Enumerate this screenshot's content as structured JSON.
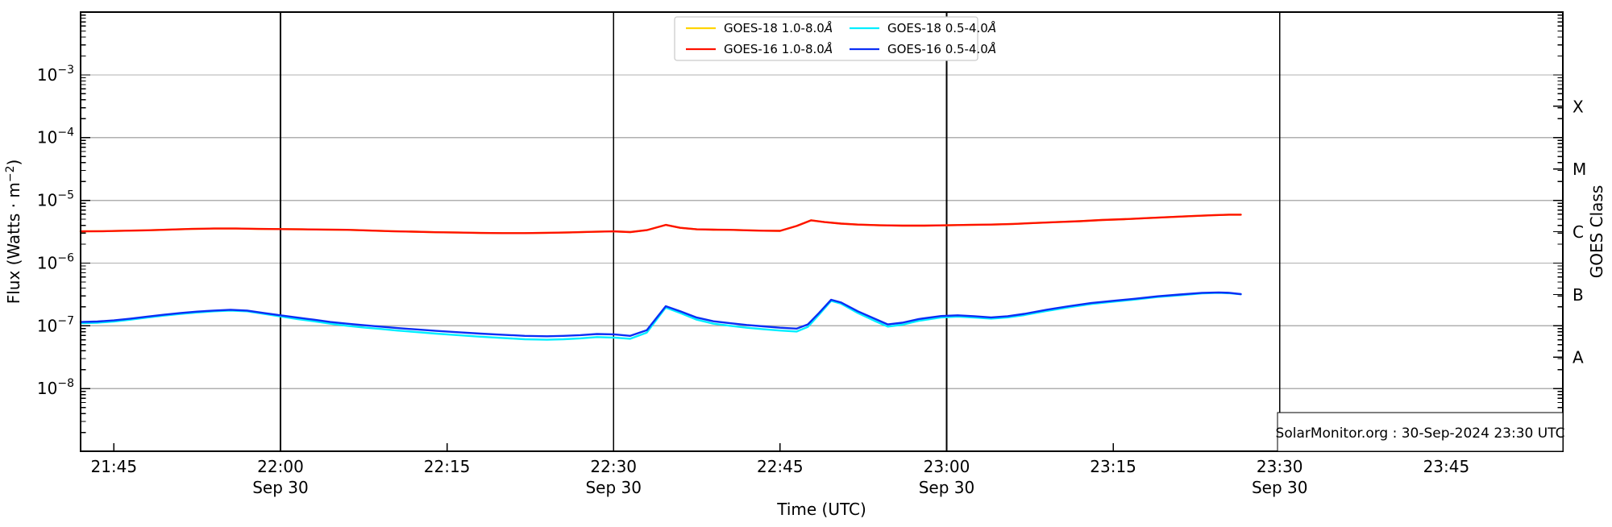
{
  "chart_data": {
    "type": "line",
    "title": "",
    "xlabel": "Time (UTC)",
    "ylabel": {
      "pre": "Flux (Watts · m",
      "sup": "−2",
      "post": ")"
    },
    "ylabel_right": "GOES Class",
    "watermark": "SolarMonitor.org : 30-Sep-2024 23:30 UTC",
    "x_axis": {
      "unit": "minutes after 21:42 UTC",
      "domain": [
        0,
        133.5
      ],
      "ticks": [
        {
          "t": 3,
          "label": "21:45",
          "date": "",
          "line": false
        },
        {
          "t": 18,
          "label": "22:00",
          "date": "Sep 30",
          "line": true
        },
        {
          "t": 33,
          "label": "22:15",
          "date": "",
          "line": false
        },
        {
          "t": 48,
          "label": "22:30",
          "date": "Sep 30",
          "line": true
        },
        {
          "t": 63,
          "label": "22:45",
          "date": "",
          "line": false
        },
        {
          "t": 78,
          "label": "23:00",
          "date": "Sep 30",
          "line": true
        },
        {
          "t": 93,
          "label": "23:15",
          "date": "",
          "line": false
        },
        {
          "t": 108,
          "label": "23:30",
          "date": "Sep 30",
          "line": true
        },
        {
          "t": 123,
          "label": "23:45",
          "date": "",
          "line": false
        }
      ]
    },
    "y_axis": {
      "scale": "log",
      "domain_exponents": [
        -2,
        -9
      ],
      "tick_exponents": [
        -3,
        -4,
        -5,
        -6,
        -7,
        -8
      ]
    },
    "right_axis": {
      "labels": [
        {
          "text": "X",
          "exponent": -3.5
        },
        {
          "text": "M",
          "exponent": -4.5
        },
        {
          "text": "C",
          "exponent": -5.5
        },
        {
          "text": "B",
          "exponent": -6.5
        },
        {
          "text": "A",
          "exponent": -7.5
        }
      ]
    },
    "colors": {
      "h_grid": "#b0b0b0",
      "v_grid": "#000000",
      "frame": "#000000",
      "legend_border": "#c9c9c9"
    },
    "legend": {
      "entries": [
        "GOES-18 1.0-8.0Å",
        "GOES-16 1.0-8.0Å",
        "GOES-18 0.5-4.0Å",
        "GOES-16 0.5-4.0Å"
      ]
    },
    "series": [
      {
        "name": "GOES-18 1.0-8.0Å",
        "color": "#ffd400",
        "unit_scale": 1e-06,
        "points": [
          [
            0,
            3.2
          ],
          [
            2,
            3.22
          ],
          [
            4,
            3.28
          ],
          [
            6,
            3.33
          ],
          [
            8,
            3.42
          ],
          [
            10,
            3.5
          ],
          [
            12,
            3.55
          ],
          [
            14,
            3.55
          ],
          [
            16,
            3.5
          ],
          [
            18,
            3.48
          ],
          [
            20,
            3.45
          ],
          [
            22,
            3.42
          ],
          [
            24,
            3.38
          ],
          [
            26,
            3.3
          ],
          [
            28,
            3.22
          ],
          [
            30,
            3.16
          ],
          [
            32,
            3.1
          ],
          [
            34,
            3.06
          ],
          [
            36,
            3.02
          ],
          [
            38,
            3.0
          ],
          [
            40,
            3.0
          ],
          [
            42,
            3.03
          ],
          [
            44,
            3.08
          ],
          [
            46,
            3.14
          ],
          [
            48,
            3.2
          ],
          [
            49.5,
            3.12
          ],
          [
            51,
            3.35
          ],
          [
            52.7,
            4.05
          ],
          [
            54,
            3.65
          ],
          [
            55.5,
            3.45
          ],
          [
            57,
            3.4
          ],
          [
            58.5,
            3.38
          ],
          [
            60,
            3.33
          ],
          [
            61.5,
            3.28
          ],
          [
            63,
            3.26
          ],
          [
            64.5,
            3.9
          ],
          [
            65.8,
            4.8
          ],
          [
            67,
            4.5
          ],
          [
            68.5,
            4.25
          ],
          [
            70,
            4.1
          ],
          [
            72,
            4.0
          ],
          [
            74,
            3.95
          ],
          [
            76,
            3.95
          ],
          [
            78,
            4.0
          ],
          [
            80,
            4.05
          ],
          [
            82,
            4.1
          ],
          [
            84,
            4.2
          ],
          [
            86,
            4.35
          ],
          [
            88,
            4.5
          ],
          [
            90,
            4.65
          ],
          [
            92,
            4.85
          ],
          [
            94,
            5.0
          ],
          [
            96,
            5.2
          ],
          [
            98,
            5.4
          ],
          [
            100,
            5.6
          ],
          [
            102,
            5.78
          ],
          [
            103.5,
            5.9
          ],
          [
            104.5,
            5.9
          ]
        ]
      },
      {
        "name": "GOES-16 1.0-8.0Å",
        "color": "#fe1100",
        "unit_scale": 1e-06,
        "points": [
          [
            0,
            3.2
          ],
          [
            2,
            3.22
          ],
          [
            4,
            3.28
          ],
          [
            6,
            3.33
          ],
          [
            8,
            3.42
          ],
          [
            10,
            3.5
          ],
          [
            12,
            3.55
          ],
          [
            14,
            3.55
          ],
          [
            16,
            3.5
          ],
          [
            18,
            3.48
          ],
          [
            20,
            3.45
          ],
          [
            22,
            3.42
          ],
          [
            24,
            3.38
          ],
          [
            26,
            3.3
          ],
          [
            28,
            3.22
          ],
          [
            30,
            3.16
          ],
          [
            32,
            3.1
          ],
          [
            34,
            3.06
          ],
          [
            36,
            3.02
          ],
          [
            38,
            3.0
          ],
          [
            40,
            3.0
          ],
          [
            42,
            3.03
          ],
          [
            44,
            3.08
          ],
          [
            46,
            3.14
          ],
          [
            48,
            3.2
          ],
          [
            49.5,
            3.12
          ],
          [
            51,
            3.35
          ],
          [
            52.7,
            4.05
          ],
          [
            54,
            3.65
          ],
          [
            55.5,
            3.45
          ],
          [
            57,
            3.4
          ],
          [
            58.5,
            3.38
          ],
          [
            60,
            3.33
          ],
          [
            61.5,
            3.28
          ],
          [
            63,
            3.26
          ],
          [
            64.5,
            3.9
          ],
          [
            65.8,
            4.8
          ],
          [
            67,
            4.5
          ],
          [
            68.5,
            4.25
          ],
          [
            70,
            4.1
          ],
          [
            72,
            4.0
          ],
          [
            74,
            3.95
          ],
          [
            76,
            3.95
          ],
          [
            78,
            4.0
          ],
          [
            80,
            4.05
          ],
          [
            82,
            4.1
          ],
          [
            84,
            4.2
          ],
          [
            86,
            4.35
          ],
          [
            88,
            4.5
          ],
          [
            90,
            4.65
          ],
          [
            92,
            4.85
          ],
          [
            94,
            5.0
          ],
          [
            96,
            5.2
          ],
          [
            98,
            5.4
          ],
          [
            100,
            5.6
          ],
          [
            102,
            5.78
          ],
          [
            103.5,
            5.9
          ],
          [
            104.5,
            5.9
          ]
        ]
      },
      {
        "name": "GOES-18 0.5-4.0Å",
        "color": "#00eeff",
        "unit_scale": 1e-07,
        "points": [
          [
            0,
            1.1
          ],
          [
            1.5,
            1.12
          ],
          [
            3,
            1.17
          ],
          [
            4.5,
            1.25
          ],
          [
            6,
            1.35
          ],
          [
            7.5,
            1.45
          ],
          [
            9,
            1.55
          ],
          [
            10.5,
            1.63
          ],
          [
            12,
            1.7
          ],
          [
            13.5,
            1.75
          ],
          [
            15,
            1.7
          ],
          [
            16.5,
            1.55
          ],
          [
            18,
            1.41
          ],
          [
            19.5,
            1.28
          ],
          [
            21,
            1.18
          ],
          [
            22.5,
            1.08
          ],
          [
            24,
            1.0
          ],
          [
            25.5,
            0.94
          ],
          [
            27,
            0.89
          ],
          [
            28.5,
            0.84
          ],
          [
            30,
            0.8
          ],
          [
            32,
            0.75
          ],
          [
            34,
            0.71
          ],
          [
            36,
            0.67
          ],
          [
            38,
            0.64
          ],
          [
            40,
            0.61
          ],
          [
            42,
            0.6
          ],
          [
            43.5,
            0.61
          ],
          [
            45,
            0.63
          ],
          [
            46.5,
            0.66
          ],
          [
            48,
            0.65
          ],
          [
            49.5,
            0.62
          ],
          [
            51,
            0.78
          ],
          [
            52.7,
            1.95
          ],
          [
            54,
            1.6
          ],
          [
            55.5,
            1.25
          ],
          [
            57,
            1.08
          ],
          [
            58.5,
            1.0
          ],
          [
            60,
            0.93
          ],
          [
            61.5,
            0.88
          ],
          [
            63,
            0.84
          ],
          [
            64.5,
            0.81
          ],
          [
            65.5,
            0.96
          ],
          [
            66.5,
            1.5
          ],
          [
            67.6,
            2.5
          ],
          [
            68.5,
            2.25
          ],
          [
            70,
            1.6
          ],
          [
            71.5,
            1.2
          ],
          [
            72.7,
            0.97
          ],
          [
            74,
            1.04
          ],
          [
            75.5,
            1.2
          ],
          [
            77.5,
            1.36
          ],
          [
            79,
            1.4
          ],
          [
            80.5,
            1.35
          ],
          [
            82,
            1.3
          ],
          [
            83.5,
            1.36
          ],
          [
            85,
            1.48
          ],
          [
            87,
            1.72
          ],
          [
            89,
            1.97
          ],
          [
            91,
            2.22
          ],
          [
            93,
            2.42
          ],
          [
            95,
            2.62
          ],
          [
            97,
            2.87
          ],
          [
            99,
            3.07
          ],
          [
            101,
            3.28
          ],
          [
            102.5,
            3.35
          ],
          [
            103.5,
            3.3
          ],
          [
            104.5,
            3.18
          ]
        ]
      },
      {
        "name": "GOES-16 0.5-4.0Å",
        "color": "#0a2ef5",
        "unit_scale": 1e-07,
        "points": [
          [
            0,
            1.15
          ],
          [
            1.5,
            1.17
          ],
          [
            3,
            1.22
          ],
          [
            4.5,
            1.3
          ],
          [
            6,
            1.4
          ],
          [
            7.5,
            1.5
          ],
          [
            9,
            1.6
          ],
          [
            10.5,
            1.68
          ],
          [
            12,
            1.75
          ],
          [
            13.5,
            1.8
          ],
          [
            15,
            1.75
          ],
          [
            16.5,
            1.6
          ],
          [
            18,
            1.47
          ],
          [
            19.5,
            1.35
          ],
          [
            21,
            1.25
          ],
          [
            22.5,
            1.15
          ],
          [
            24,
            1.08
          ],
          [
            25.5,
            1.02
          ],
          [
            27,
            0.97
          ],
          [
            28.5,
            0.92
          ],
          [
            30,
            0.88
          ],
          [
            32,
            0.83
          ],
          [
            34,
            0.79
          ],
          [
            36,
            0.75
          ],
          [
            38,
            0.72
          ],
          [
            40,
            0.69
          ],
          [
            42,
            0.68
          ],
          [
            43.5,
            0.69
          ],
          [
            45,
            0.71
          ],
          [
            46.5,
            0.74
          ],
          [
            48,
            0.73
          ],
          [
            49.5,
            0.69
          ],
          [
            51,
            0.85
          ],
          [
            52.7,
            2.05
          ],
          [
            54,
            1.7
          ],
          [
            55.5,
            1.35
          ],
          [
            57,
            1.18
          ],
          [
            58.5,
            1.1
          ],
          [
            60,
            1.03
          ],
          [
            61.5,
            0.98
          ],
          [
            63,
            0.93
          ],
          [
            64.5,
            0.9
          ],
          [
            65.5,
            1.05
          ],
          [
            66.5,
            1.6
          ],
          [
            67.6,
            2.6
          ],
          [
            68.5,
            2.35
          ],
          [
            70,
            1.7
          ],
          [
            71.5,
            1.3
          ],
          [
            72.7,
            1.05
          ],
          [
            74,
            1.12
          ],
          [
            75.5,
            1.28
          ],
          [
            77.5,
            1.43
          ],
          [
            79,
            1.47
          ],
          [
            80.5,
            1.42
          ],
          [
            82,
            1.36
          ],
          [
            83.5,
            1.42
          ],
          [
            85,
            1.55
          ],
          [
            87,
            1.8
          ],
          [
            89,
            2.05
          ],
          [
            91,
            2.3
          ],
          [
            93,
            2.5
          ],
          [
            95,
            2.7
          ],
          [
            97,
            2.95
          ],
          [
            99,
            3.15
          ],
          [
            101,
            3.35
          ],
          [
            102.5,
            3.4
          ],
          [
            103.5,
            3.35
          ],
          [
            104.5,
            3.2
          ]
        ]
      }
    ]
  }
}
